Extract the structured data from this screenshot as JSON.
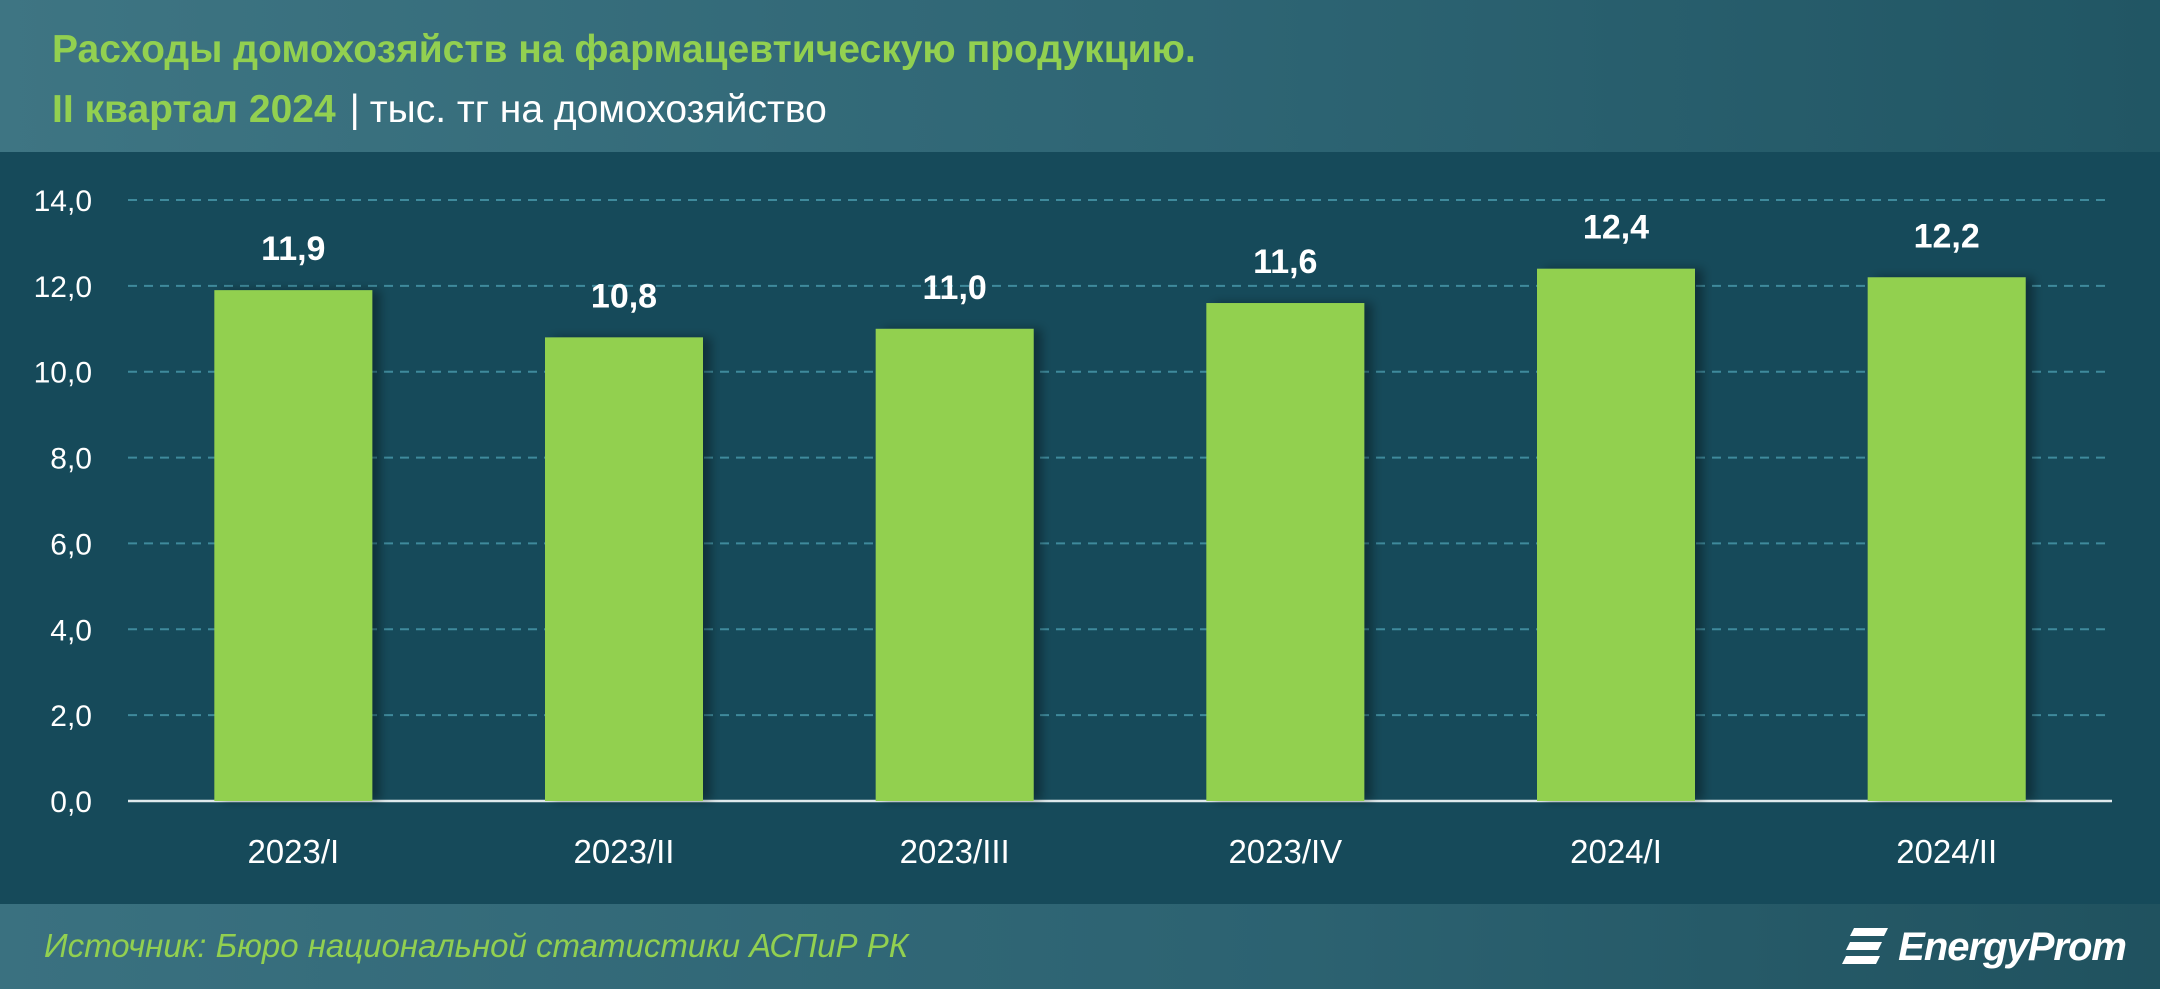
{
  "header": {
    "title_line1": "Расходы домохозяйств на фармацевтическую продукцию.",
    "title_period": "II квартал 2024",
    "title_separator": "|",
    "title_unit": "тыс. тг на домохозяйство"
  },
  "footer": {
    "source": "Источник: Бюро национальной статистики АСПиР РК",
    "logo_text": "EnergyProm"
  },
  "colors": {
    "bar": "#92d050",
    "title_accent": "#92d050",
    "plot_background": "#164a5a",
    "gridline": "#3f8a9c"
  },
  "chart_data": {
    "type": "bar",
    "categories": [
      "2023/I",
      "2023/II",
      "2023/III",
      "2023/IV",
      "2024/I",
      "2024/II"
    ],
    "values": [
      11.9,
      10.8,
      11.0,
      11.6,
      12.4,
      12.2
    ],
    "value_labels": [
      "11,9",
      "10,8",
      "11,0",
      "11,6",
      "12,4",
      "12,2"
    ],
    "ylim": [
      0,
      14
    ],
    "yticks": [
      0,
      2,
      4,
      6,
      8,
      10,
      12,
      14
    ],
    "ytick_labels": [
      "0,0",
      "2,0",
      "4,0",
      "6,0",
      "8,0",
      "10,0",
      "12,0",
      "14,0"
    ],
    "grid": true,
    "legend": "none"
  }
}
